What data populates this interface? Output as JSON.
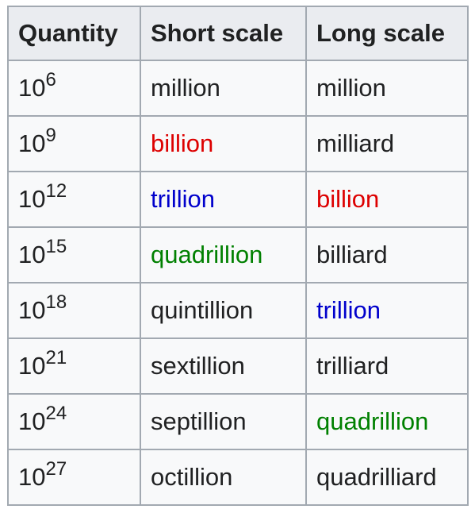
{
  "table": {
    "headers": [
      "Quantity",
      "Short scale",
      "Long scale"
    ],
    "rows": [
      {
        "base": "10",
        "exp": "6",
        "short": "million",
        "short_color": "#202122",
        "long": "million",
        "long_color": "#202122"
      },
      {
        "base": "10",
        "exp": "9",
        "short": "billion",
        "short_color": "#dd0000",
        "long": "milliard",
        "long_color": "#202122"
      },
      {
        "base": "10",
        "exp": "12",
        "short": "trillion",
        "short_color": "#0000cc",
        "long": "billion",
        "long_color": "#dd0000"
      },
      {
        "base": "10",
        "exp": "15",
        "short": "quadrillion",
        "short_color": "#008000",
        "long": "billiard",
        "long_color": "#202122"
      },
      {
        "base": "10",
        "exp": "18",
        "short": "quintillion",
        "short_color": "#202122",
        "long": "trillion",
        "long_color": "#0000cc"
      },
      {
        "base": "10",
        "exp": "21",
        "short": "sextillion",
        "short_color": "#202122",
        "long": "trilliard",
        "long_color": "#202122"
      },
      {
        "base": "10",
        "exp": "24",
        "short": "septillion",
        "short_color": "#202122",
        "long": "quadrillion",
        "long_color": "#008000"
      },
      {
        "base": "10",
        "exp": "27",
        "short": "octillion",
        "short_color": "#202122",
        "long": "quadrilliard",
        "long_color": "#202122"
      }
    ]
  }
}
